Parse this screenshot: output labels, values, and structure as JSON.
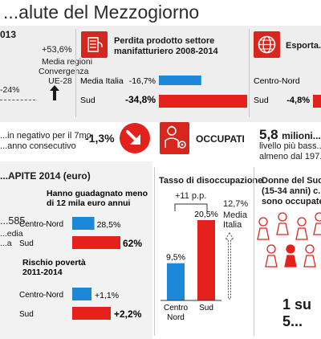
{
  "header": {
    "title": "...alute del Mezzogiorno"
  },
  "panel_pil": {
    "year_fragment": "013",
    "value_top": "+53,6%",
    "caption": [
      "Media regioni",
      "Convergenza",
      "UE-28"
    ],
    "value_bottom": "-24%"
  },
  "panel_manifatturiero": {
    "title_lines": [
      "Perdita prodotto settore",
      "manifatturiero 2008-2014"
    ],
    "icon": "factory-spool-icon"
  },
  "panel_export": {
    "title_fragment": "Esporta...",
    "icon": "globe-icon"
  },
  "crescita": {
    "text_lines": [
      "...in negativo per il 7mo",
      "...anno consecutivo"
    ],
    "value": "-1,3%",
    "icon": "arrow-down-right-icon"
  },
  "occupati": {
    "label": "OCCUPATI",
    "icon": "worker-gear-icon",
    "value": "5,8",
    "unit": "milioni...",
    "sub_lines": [
      "livello più bass...",
      "almeno dal 197..."
    ]
  },
  "reddito": {
    "heading": "...APITE 2014 (euro)",
    "left_value": "...585",
    "left_caption": [
      "...edia",
      "...a"
    ]
  },
  "disoccupazione": {
    "title": "Tasso di disoccupazione",
    "delta": "+11 p.p.",
    "media_value": "12,7%",
    "media_label": [
      "Media",
      "Italia"
    ]
  },
  "donne": {
    "text_lines": [
      "Donne del Sud...",
      "(15-34 anni) c...",
      "sono occupate..."
    ],
    "ratio": "1 su 5..."
  },
  "colors": {
    "red": "#e3221b",
    "blue": "#1e88d8",
    "grey_band": "#eeeeee"
  },
  "chart_data": [
    {
      "type": "bar",
      "title": "Perdita prodotto settore manifatturiero 2008-2014",
      "categories": [
        "Media Italia",
        "Sud"
      ],
      "values": [
        -16.7,
        -34.8
      ],
      "value_labels": [
        "-16,7%",
        "-34,8%"
      ],
      "orientation": "horizontal"
    },
    {
      "type": "bar",
      "title": "Esporta...",
      "categories": [
        "Centro-Nord",
        "Sud"
      ],
      "values": [
        null,
        -4.8
      ],
      "value_labels": [
        "",
        "-4,8%"
      ],
      "orientation": "horizontal"
    },
    {
      "type": "bar",
      "title": "Hanno guadagnato meno di 12 mila euro annui",
      "categories": [
        "Centro-Nord",
        "Sud"
      ],
      "values": [
        28.5,
        62
      ],
      "value_labels": [
        "28,5%",
        "62%"
      ],
      "orientation": "horizontal"
    },
    {
      "type": "bar",
      "title": "Rischio povertà 2011-2014",
      "categories": [
        "Centro-Nord",
        "Sud"
      ],
      "values": [
        1.1,
        2.2
      ],
      "value_labels": [
        "+1,1%",
        "+2,2%"
      ],
      "orientation": "horizontal"
    },
    {
      "type": "bar",
      "title": "Tasso di disoccupazione",
      "categories": [
        "Centro Nord",
        "Sud"
      ],
      "values": [
        9.5,
        20.5
      ],
      "value_labels": [
        "9,5%",
        "20,5%"
      ],
      "orientation": "vertical"
    }
  ]
}
